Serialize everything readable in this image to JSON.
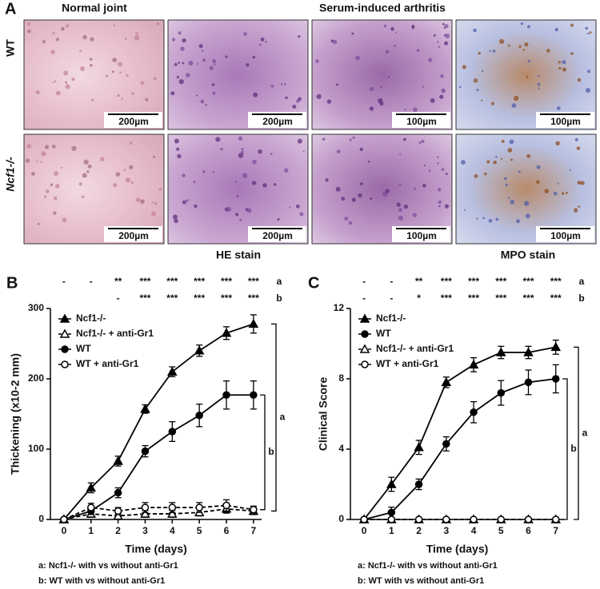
{
  "panel_a": {
    "label": "A",
    "column_headers": [
      "Normal joint",
      "Serum-induced arthritis"
    ],
    "row_labels": [
      "WT",
      "Ncf1-/-"
    ],
    "scale_bars": [
      [
        "200µm",
        "200µm",
        "100µm",
        "100µm"
      ],
      [
        "200µm",
        "200µm",
        "100µm",
        "100µm"
      ]
    ],
    "stain_labels": [
      "HE stain",
      "MPO stain"
    ]
  },
  "chart_data": [
    {
      "type": "line",
      "panel_label": "B",
      "y_label": "Thickening (x10-2 mm)",
      "x_label": "Time (days)",
      "x": [
        0,
        1,
        2,
        3,
        4,
        5,
        6,
        7
      ],
      "xlim": [
        -0.5,
        7.3
      ],
      "xticks": [
        0,
        1,
        2,
        3,
        4,
        5,
        6,
        7
      ],
      "ylim": [
        0,
        300
      ],
      "yticks": [
        0,
        100,
        200,
        300
      ],
      "legend": "upper left",
      "series": [
        {
          "name": "Ncf1-/-",
          "color": "#000000",
          "marker": "triangle",
          "filled": true,
          "linestyle": "solid",
          "values": [
            0,
            45,
            83,
            157,
            210,
            240,
            265,
            278
          ],
          "errors": [
            0,
            7,
            7,
            6,
            7,
            8,
            9,
            13
          ]
        },
        {
          "name": "Ncf1-/- + anti-Gr1",
          "color": "#000000",
          "marker": "triangle",
          "filled": false,
          "linestyle": "dashed",
          "values": [
            0,
            8,
            5,
            8,
            8,
            10,
            15,
            12
          ],
          "errors": [
            0,
            5,
            4,
            5,
            5,
            5,
            6,
            5
          ]
        },
        {
          "name": "WT",
          "color": "#000000",
          "marker": "circle",
          "filled": true,
          "linestyle": "solid",
          "values": [
            0,
            12,
            38,
            97,
            125,
            148,
            177,
            177
          ],
          "errors": [
            0,
            5,
            7,
            8,
            14,
            16,
            20,
            20
          ]
        },
        {
          "name": "WT + anti-Gr1",
          "color": "#000000",
          "marker": "circle",
          "filled": false,
          "linestyle": "dashed",
          "values": [
            0,
            17,
            12,
            17,
            17,
            17,
            20,
            14
          ],
          "errors": [
            0,
            6,
            5,
            7,
            7,
            7,
            8,
            5
          ]
        }
      ],
      "significance": [
        {
          "label": "a",
          "marks": [
            "-",
            "-",
            "**",
            "***",
            "***",
            "***",
            "***",
            "***"
          ]
        },
        {
          "label": "b",
          "marks": [
            null,
            null,
            "-",
            "***",
            "***",
            "***",
            "***",
            "***"
          ]
        }
      ],
      "brackets": [
        "a",
        "b"
      ],
      "footnotes": [
        "a: Ncf1-/- with vs without anti-Gr1",
        "b: WT with vs without anti-Gr1"
      ]
    },
    {
      "type": "line",
      "panel_label": "C",
      "y_label": "Clinical Score",
      "x_label": "Time (days)",
      "x": [
        0,
        1,
        2,
        3,
        4,
        5,
        6,
        7
      ],
      "xlim": [
        -0.5,
        7.3
      ],
      "xticks": [
        0,
        1,
        2,
        3,
        4,
        5,
        6,
        7
      ],
      "ylim": [
        0,
        12
      ],
      "yticks": [
        0,
        4,
        8,
        12
      ],
      "legend": "upper left",
      "series": [
        {
          "name": "Ncf1-/-",
          "color": "#000000",
          "marker": "triangle",
          "filled": true,
          "linestyle": "solid",
          "values": [
            0,
            2.0,
            4.1,
            7.8,
            8.8,
            9.5,
            9.5,
            9.8
          ],
          "errors": [
            0,
            0.4,
            0.4,
            0.3,
            0.4,
            0.35,
            0.35,
            0.4
          ]
        },
        {
          "name": "WT",
          "color": "#000000",
          "marker": "circle",
          "filled": true,
          "linestyle": "solid",
          "values": [
            0,
            0.4,
            2.0,
            4.3,
            6.1,
            7.2,
            7.8,
            8.0
          ],
          "errors": [
            0,
            0.3,
            0.3,
            0.4,
            0.6,
            0.7,
            0.7,
            0.8
          ]
        },
        {
          "name": "Ncf1-/- + anti-Gr1",
          "color": "#000000",
          "marker": "triangle",
          "filled": false,
          "linestyle": "dashed",
          "values": [
            0,
            0,
            0,
            0,
            0,
            0,
            0,
            0
          ],
          "errors": [
            0,
            0,
            0,
            0,
            0,
            0,
            0,
            0
          ]
        },
        {
          "name": "WT + anti-Gr1",
          "color": "#000000",
          "marker": "circle",
          "filled": false,
          "linestyle": "dashed",
          "values": [
            0,
            0,
            0,
            0,
            0,
            0,
            0,
            0
          ],
          "errors": [
            0,
            0,
            0,
            0,
            0,
            0,
            0,
            0
          ]
        }
      ],
      "significance": [
        {
          "label": "a",
          "marks": [
            "-",
            "-",
            "**",
            "***",
            "***",
            "***",
            "***",
            "***"
          ]
        },
        {
          "label": "b",
          "marks": [
            "-",
            "-",
            "*",
            "***",
            "***",
            "***",
            "***",
            "***"
          ]
        }
      ],
      "brackets": [
        "a",
        "b"
      ],
      "footnotes": [
        "a: Ncf1-/- with vs without anti-Gr1",
        "b: WT with vs without anti-Gr1"
      ]
    }
  ]
}
